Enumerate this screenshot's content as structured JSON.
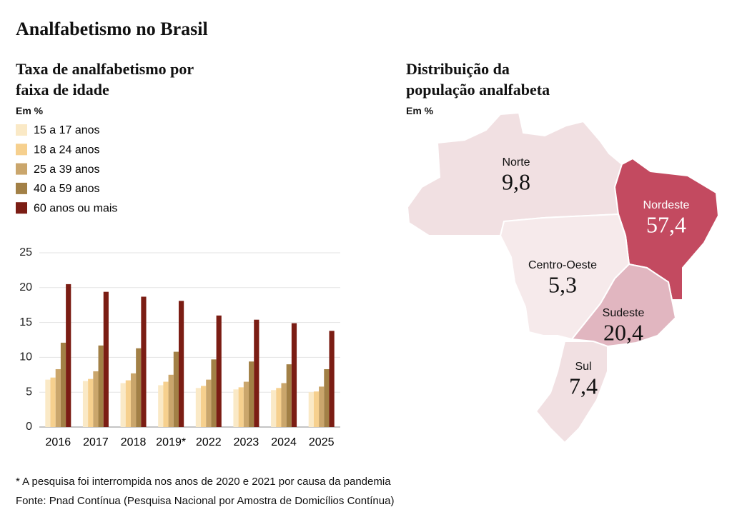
{
  "title": "Analfabetismo no Brasil",
  "chart_data": [
    {
      "type": "bar",
      "title": "Taxa de analfabetismo por faixa de idade",
      "subtitle": "Em %",
      "categories": [
        "2016",
        "2017",
        "2018",
        "2019*",
        "2022",
        "2023",
        "2024",
        "2025"
      ],
      "series": [
        {
          "name": "15 a 17 anos",
          "color": "#fae9c6",
          "values": [
            6.8,
            6.6,
            6.3,
            6.0,
            5.6,
            5.4,
            5.3,
            5.0
          ]
        },
        {
          "name": "18 a 24 anos",
          "color": "#f6d08e",
          "values": [
            7.1,
            6.9,
            6.7,
            6.5,
            5.9,
            5.7,
            5.6,
            5.1
          ]
        },
        {
          "name": "25 a 39 anos",
          "color": "#caa66c",
          "values": [
            8.3,
            8.0,
            7.7,
            7.5,
            6.8,
            6.5,
            6.3,
            5.8
          ]
        },
        {
          "name": "40 a 59 anos",
          "color": "#a28046",
          "values": [
            12.1,
            11.7,
            11.3,
            10.8,
            9.7,
            9.4,
            9.0,
            8.3
          ]
        },
        {
          "name": "60 anos ou mais",
          "color": "#7b1d14",
          "values": [
            20.5,
            19.4,
            18.7,
            18.1,
            16.0,
            15.4,
            14.9,
            13.8
          ]
        }
      ],
      "ylim": [
        0,
        25
      ],
      "yticks": [
        0,
        5,
        10,
        15,
        20,
        25
      ],
      "grid": true
    },
    {
      "type": "map",
      "title": "Distribuição da população analfabeta",
      "subtitle": "Em %",
      "categories": [
        "Norte",
        "Nordeste",
        "Centro-Oeste",
        "Sudeste",
        "Sul"
      ],
      "values": [
        9.8,
        57.4,
        5.3,
        20.4,
        7.4
      ],
      "value_labels": [
        "9,8",
        "57,4",
        "5,3",
        "20,4",
        "7,4"
      ],
      "colors": [
        "#f1e0e2",
        "#c34a60",
        "#f6eaeb",
        "#e1b6c0",
        "#f1e0e2"
      ]
    }
  ],
  "footnote": "* A pesquisa foi interrompida nos anos de 2020 e 2021 por causa da pandemia",
  "source": "Fonte: Pnad Contínua (Pesquisa Nacional por Amostra de Domicílios Contínua)"
}
